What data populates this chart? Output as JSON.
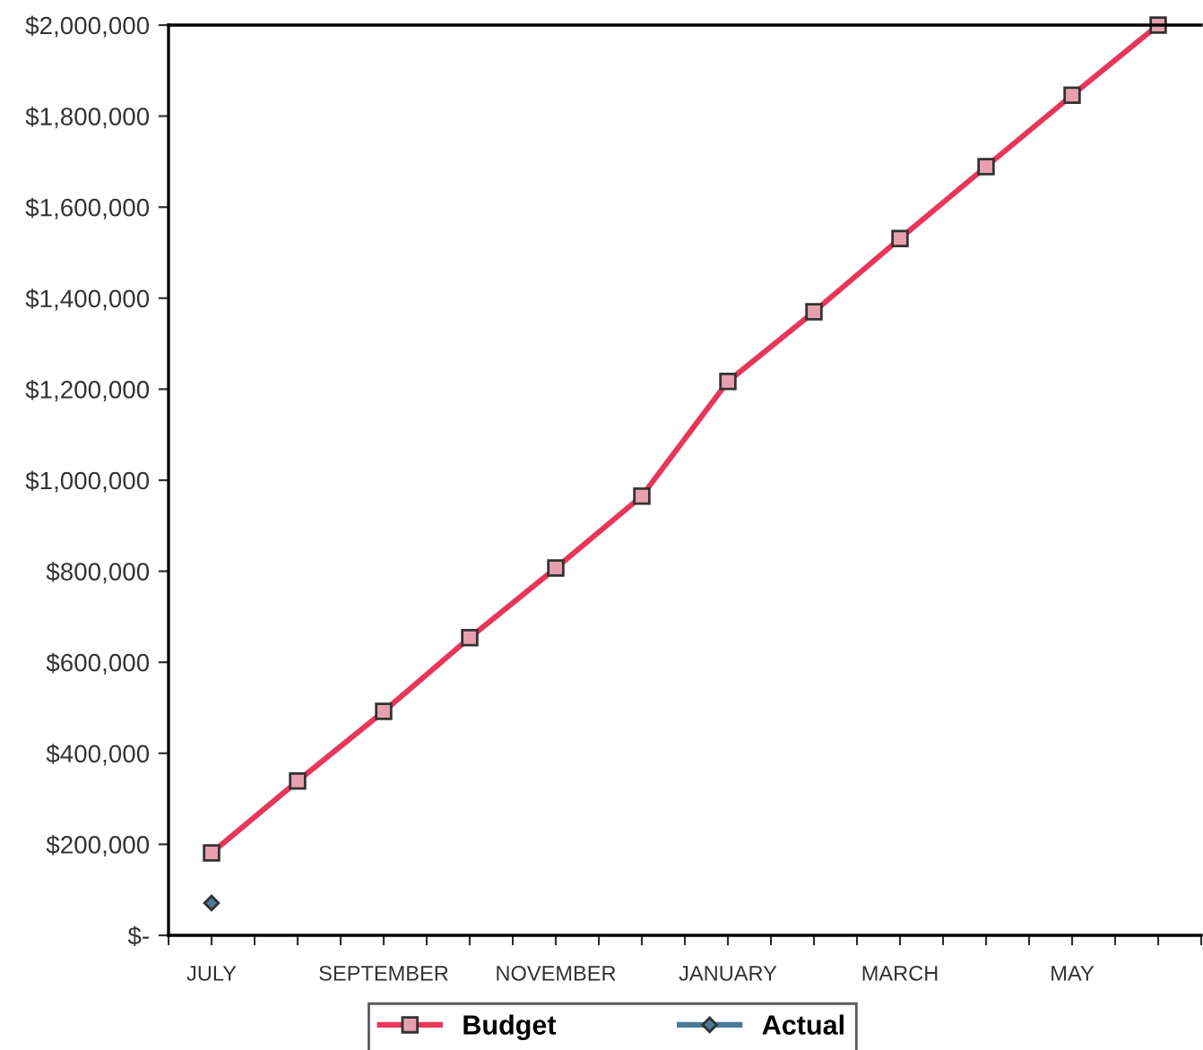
{
  "chart_data": {
    "type": "line",
    "categories": [
      "JULY",
      null,
      "SEPTEMBER",
      null,
      "NOVEMBER",
      null,
      "JANUARY",
      null,
      "MARCH",
      null,
      "MAY",
      null
    ],
    "series": [
      {
        "name": "Budget",
        "color": "#e8365a",
        "marker": "square",
        "values": [
          181000,
          339000,
          492000,
          654000,
          807000,
          965000,
          1217000,
          1370000,
          1531000,
          1689000,
          1846000,
          2000000
        ]
      },
      {
        "name": "Actual",
        "color": "#4a7a9a",
        "marker": "diamond",
        "values": [
          71000,
          null,
          null,
          null,
          null,
          null,
          null,
          null,
          null,
          null,
          null,
          null
        ]
      }
    ],
    "ylim": [
      0,
      2000000
    ],
    "yticks": [
      {
        "value": 0,
        "label": "$-"
      },
      {
        "value": 200000,
        "label": "$200,000"
      },
      {
        "value": 400000,
        "label": "$400,000"
      },
      {
        "value": 600000,
        "label": "$600,000"
      },
      {
        "value": 800000,
        "label": "$800,000"
      },
      {
        "value": 1000000,
        "label": "$1,000,000"
      },
      {
        "value": 1200000,
        "label": "$1,200,000"
      },
      {
        "value": 1400000,
        "label": "$1,400,000"
      },
      {
        "value": 1600000,
        "label": "$1,600,000"
      },
      {
        "value": 1800000,
        "label": "$1,800,000"
      },
      {
        "value": 2000000,
        "label": "$2,000,000"
      }
    ],
    "grid": false,
    "legend": "bottom"
  }
}
